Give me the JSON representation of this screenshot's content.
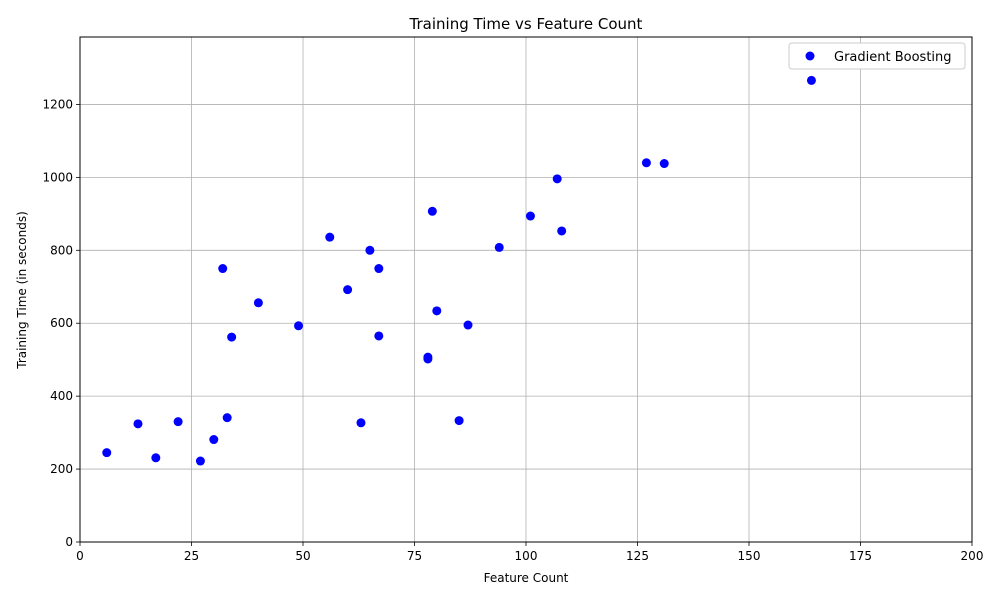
{
  "chart_data": {
    "type": "scatter",
    "title": "Training Time vs Feature Count",
    "xlabel": "Feature Count",
    "ylabel": "Training Time (in seconds)",
    "xlim": [
      0,
      200
    ],
    "ylim": [
      0,
      1385
    ],
    "xticks": [
      0,
      25,
      50,
      75,
      100,
      125,
      150,
      175,
      200
    ],
    "yticks": [
      0,
      200,
      400,
      600,
      800,
      1000,
      1200
    ],
    "grid": true,
    "legend_position": "top-right",
    "series": [
      {
        "name": "Gradient Boosting",
        "color": "#0000ff",
        "points": [
          [
            6,
            245
          ],
          [
            13,
            324
          ],
          [
            17,
            231
          ],
          [
            22,
            330
          ],
          [
            27,
            222
          ],
          [
            30,
            281
          ],
          [
            32,
            750
          ],
          [
            33,
            341
          ],
          [
            34,
            562
          ],
          [
            40,
            656
          ],
          [
            49,
            593
          ],
          [
            56,
            836
          ],
          [
            60,
            692
          ],
          [
            63,
            327
          ],
          [
            65,
            800
          ],
          [
            67,
            750
          ],
          [
            67,
            565
          ],
          [
            78,
            507
          ],
          [
            78,
            502
          ],
          [
            79,
            907
          ],
          [
            80,
            634
          ],
          [
            85,
            333
          ],
          [
            87,
            595
          ],
          [
            94,
            808
          ],
          [
            101,
            894
          ],
          [
            107,
            996
          ],
          [
            108,
            853
          ],
          [
            127,
            1040
          ],
          [
            131,
            1038
          ],
          [
            164,
            1266
          ]
        ]
      }
    ]
  }
}
